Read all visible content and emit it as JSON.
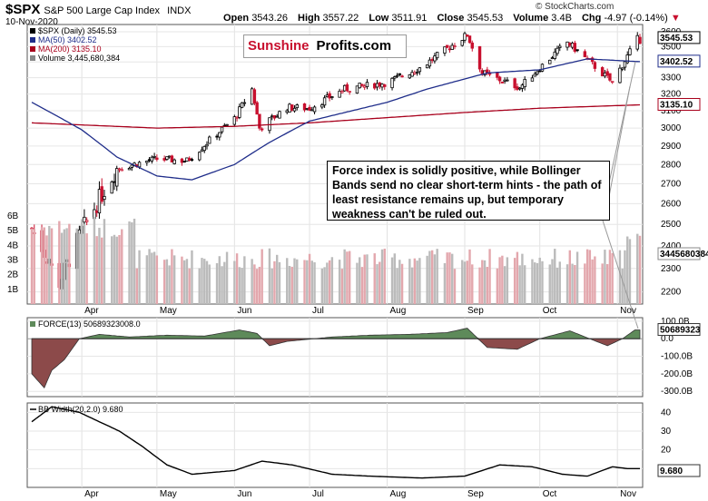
{
  "header": {
    "symbol": "$SPX",
    "name": "S&P 500 Large Cap Index",
    "exchange": "INDX",
    "date": "10-Nov-2020",
    "open_label": "Open",
    "open": "3543.26",
    "high_label": "High",
    "high": "3557.22",
    "low_label": "Low",
    "low": "3511.91",
    "close_label": "Close",
    "close": "3545.53",
    "volume_label": "Volume",
    "volume": "3.4B",
    "chg_label": "Chg",
    "chg": "-4.97 (-0.14%)",
    "brand": "© StockCharts.com"
  },
  "logo": {
    "part1": "Sunshine",
    "part2": "Profits.com"
  },
  "annotation": "Force index is solidly positive, while Bollinger Bands send no clear short-term hints - the path of least resistance remains up, but temporary weakness can't be ruled out.",
  "colors": {
    "up": "#000000",
    "down": "#c8102e",
    "ma50": "#1f2d8a",
    "ma200": "#a8001c",
    "force_pos": "#5e8a5a",
    "force_neg": "#8c4a4a",
    "vol_up": "#bbbbbb",
    "vol_down": "#e3a7ad"
  },
  "chart_data": [
    {
      "type": "line",
      "panel": "price",
      "legend": [
        "$SPX (Daily) 3545.53",
        "MA(50) 3402.52",
        "MA(200) 3135.10",
        "Volume 3,445,680,384"
      ],
      "months": [
        "Apr",
        "May",
        "Jun",
        "Jul",
        "Aug",
        "Sep",
        "Oct",
        "Nov"
      ],
      "y_ticks": [
        2200,
        2300,
        2400,
        2500,
        2600,
        2700,
        2800,
        2900,
        3000,
        3100,
        3200,
        3300,
        3400,
        3500,
        3600
      ],
      "ylim": [
        2150,
        3650
      ],
      "y_scale": "log",
      "last_labels": {
        "close": "3545.53",
        "ma50": "3402.52",
        "ma200": "3135.10",
        "volume": "3445680384"
      },
      "volume_ticks": [
        "1B",
        "2B",
        "3B",
        "4B",
        "5B",
        "6B"
      ],
      "close_x": [
        "Mar 12",
        "Mar 23",
        "Apr 01",
        "Apr 15",
        "May 01",
        "May 13",
        "Jun 01",
        "Jun 08",
        "Jun 11",
        "Jun 22",
        "Jul 01",
        "Jul 15",
        "Aug 01",
        "Aug 15",
        "Sep 02",
        "Sep 08",
        "Sep 23",
        "Oct 12",
        "Oct 30",
        "Nov 09",
        "Nov 10"
      ],
      "close_y": [
        2480,
        2240,
        2470,
        2780,
        2830,
        2820,
        3055,
        3230,
        3000,
        3120,
        3115,
        3230,
        3270,
        3370,
        3580,
        3330,
        3240,
        3530,
        3270,
        3550,
        3545
      ],
      "ma50_x": [
        "Mar 12",
        "Apr 01",
        "Apr 15",
        "May 01",
        "May 15",
        "Jun 01",
        "Jun 15",
        "Jul 01",
        "Aug 01",
        "Aug 17",
        "Sep 10",
        "Oct 01",
        "Oct 20",
        "Nov 10"
      ],
      "ma50_y": [
        3150,
        2990,
        2840,
        2740,
        2720,
        2800,
        2920,
        3040,
        3150,
        3230,
        3330,
        3350,
        3420,
        3402
      ],
      "ma200_x": [
        "Mar 12",
        "May 01",
        "Jun 01",
        "Jul 01",
        "Aug 01",
        "Sep 01",
        "Oct 01",
        "Nov 10"
      ],
      "ma200_y": [
        3030,
        3000,
        3010,
        3030,
        3060,
        3090,
        3115,
        3135
      ]
    },
    {
      "type": "area",
      "panel": "force",
      "legend": "FORCE(13) 50689323008.0",
      "y_ticks": [
        "100.0B",
        "0.0",
        "-100.0B",
        "-200.0B",
        "-300.0B"
      ],
      "y_tick_values": [
        100,
        0,
        -100,
        -200,
        -300
      ],
      "ylim": [
        -330,
        120
      ],
      "last_label": "50689323008.0",
      "x": [
        "Mar 12",
        "Mar 17",
        "Mar 20",
        "Mar 25",
        "Mar 31",
        "Apr 08",
        "Apr 20",
        "May 05",
        "May 20",
        "Jun 03",
        "Jun 10",
        "Jun 15",
        "Jun 22",
        "Jul 10",
        "Jul 25",
        "Aug 10",
        "Aug 25",
        "Sep 02",
        "Sep 10",
        "Sep 22",
        "Oct 01",
        "Oct 13",
        "Oct 28",
        "Nov 03",
        "Nov 08",
        "Nov 10"
      ],
      "y": [
        -200,
        -280,
        -180,
        -120,
        0,
        25,
        10,
        20,
        15,
        50,
        30,
        -40,
        -15,
        10,
        20,
        25,
        35,
        60,
        -50,
        -60,
        0,
        45,
        -40,
        0,
        50,
        50
      ]
    },
    {
      "type": "line",
      "panel": "bb_width",
      "legend": "BB Width(20,2.0) 9.680",
      "y_ticks": [
        10,
        20,
        30,
        40
      ],
      "ylim": [
        0,
        45
      ],
      "last_label": "9.680",
      "x": [
        "Mar 12",
        "Mar 20",
        "Mar 31",
        "Apr 08",
        "Apr 16",
        "Apr 25",
        "May 05",
        "May 15",
        "Jun 01",
        "Jun 12",
        "Jun 24",
        "Jul 10",
        "Jul 25",
        "Aug 15",
        "Sep 01",
        "Sep 15",
        "Sep 28",
        "Oct 10",
        "Oct 20",
        "Oct 30",
        "Nov 05",
        "Nov 10"
      ],
      "y": [
        35,
        43,
        40,
        35,
        30,
        22,
        12,
        7,
        9,
        14,
        12,
        7,
        6,
        5,
        6,
        12,
        11,
        7,
        6,
        11,
        10,
        10
      ]
    }
  ]
}
